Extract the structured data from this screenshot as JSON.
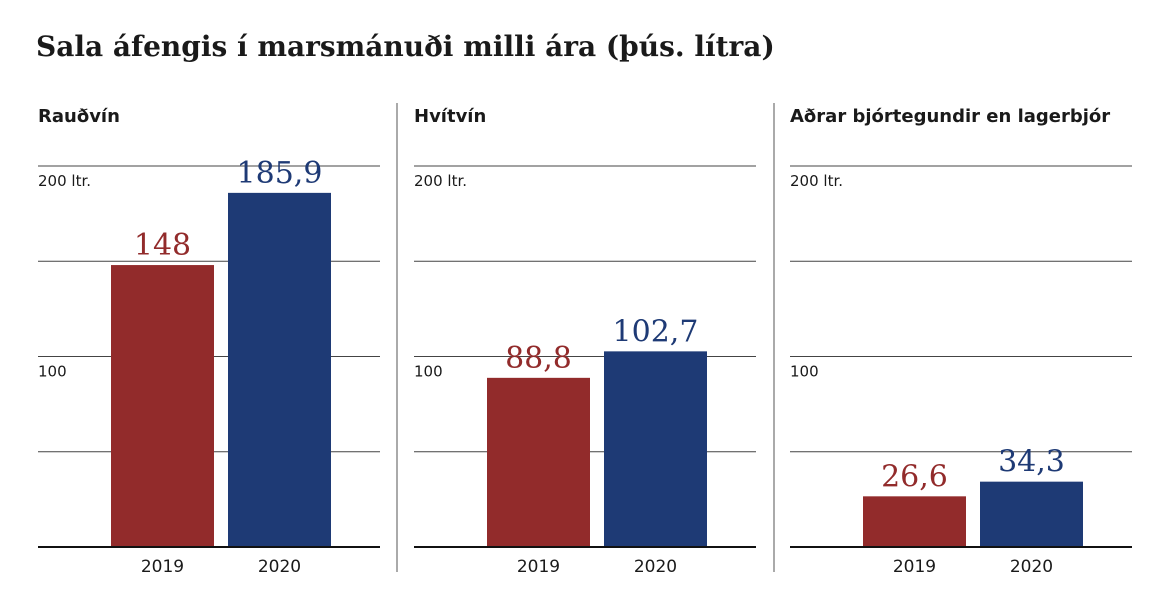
{
  "chart_data": {
    "type": "bar",
    "title": "Sala áfengis í marsmánuði milli ára (þús. lítra)",
    "categories": [
      "2019",
      "2020"
    ],
    "ylim": [
      0,
      200
    ],
    "yticks": [
      {
        "value": 100,
        "label": "100"
      },
      {
        "value": 200,
        "label": "200 ltr."
      }
    ],
    "grid": true,
    "colors": [
      "#922b2b",
      "#1e3a75"
    ],
    "panels": [
      {
        "title": "Rauðvín",
        "values": [
          148,
          185.9
        ],
        "labels": [
          "148",
          "185,9"
        ]
      },
      {
        "title": "Hvítvín",
        "values": [
          88.8,
          102.7
        ],
        "labels": [
          "88,8",
          "102,7"
        ]
      },
      {
        "title": "Aðrar bjórtegundir en lagerbjór",
        "values": [
          26.6,
          34.3
        ],
        "labels": [
          "26,6",
          "34,3"
        ]
      }
    ]
  }
}
